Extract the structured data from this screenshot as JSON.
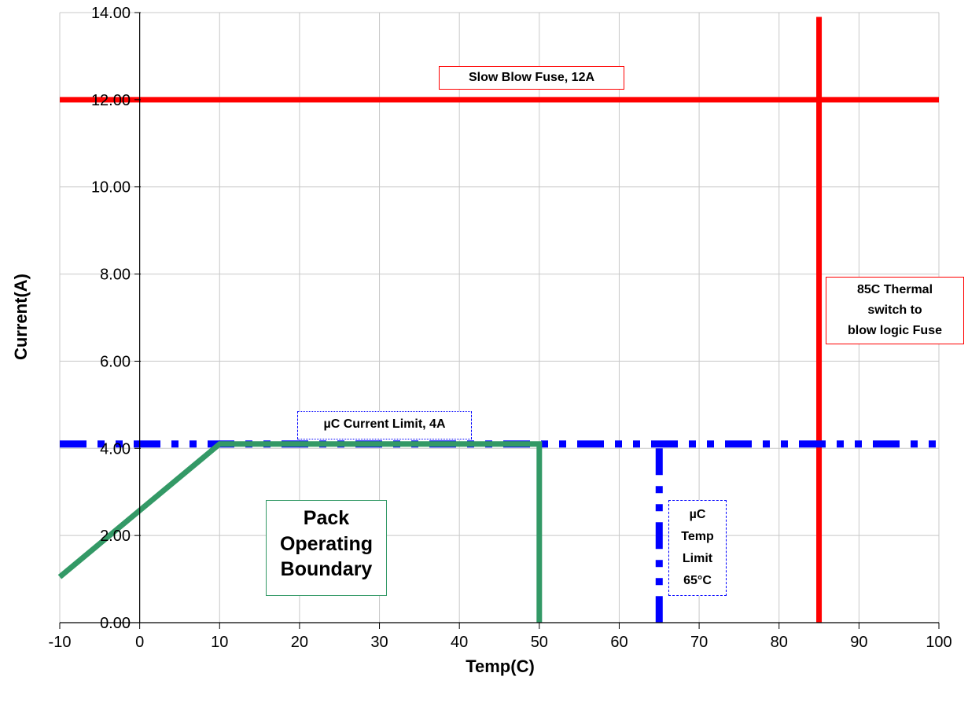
{
  "chart_data": {
    "type": "line",
    "title": "",
    "xlabel": "Temp(C)",
    "ylabel": "Current(A)",
    "xlim": [
      -10,
      100
    ],
    "ylim": [
      0,
      14
    ],
    "x_ticks": [
      -10,
      0,
      10,
      20,
      30,
      40,
      50,
      60,
      70,
      80,
      90,
      100
    ],
    "y_ticks": [
      "0.00",
      "2.00",
      "4.00",
      "6.00",
      "8.00",
      "10.00",
      "12.00",
      "14.00"
    ],
    "grid": true,
    "series": [
      {
        "color": "#ff0000",
        "style": "solid",
        "points": [
          [
            -10,
            12
          ],
          [
            100,
            12
          ]
        ]
      },
      {
        "color": "#ff0000",
        "style": "solid",
        "points": [
          [
            85,
            13.9
          ],
          [
            85,
            0
          ]
        ]
      },
      {
        "color": "#0000ff",
        "style": "dash-dot",
        "points": [
          [
            -10,
            4.1
          ],
          [
            100,
            4.1
          ]
        ]
      },
      {
        "color": "#0000ff",
        "style": "dash-dot",
        "points": [
          [
            65,
            4.0
          ],
          [
            65,
            0
          ]
        ]
      },
      {
        "color": "#339966",
        "style": "solid",
        "points": [
          [
            -10,
            1.05
          ],
          [
            10,
            4.1
          ],
          [
            50,
            4.1
          ],
          [
            50,
            0
          ]
        ]
      }
    ],
    "annotations": [
      {
        "id": "fuse",
        "lines": [
          "Slow Blow Fuse, 12A"
        ],
        "color": "#ff0000"
      },
      {
        "id": "thermal",
        "lines": [
          "85C Thermal",
          "switch to",
          "blow logic Fuse"
        ],
        "color": "#ff0000"
      },
      {
        "id": "current_limit",
        "lines": [
          "µC Current Limit, 4A"
        ],
        "color": "#0000ff"
      },
      {
        "id": "temp_limit",
        "lines": [
          "µC",
          "Temp",
          "Limit",
          "65°C"
        ],
        "color": "#0000ff"
      },
      {
        "id": "pack",
        "lines": [
          "Pack",
          "Operating",
          "Boundary"
        ],
        "color": "#339966"
      }
    ]
  }
}
